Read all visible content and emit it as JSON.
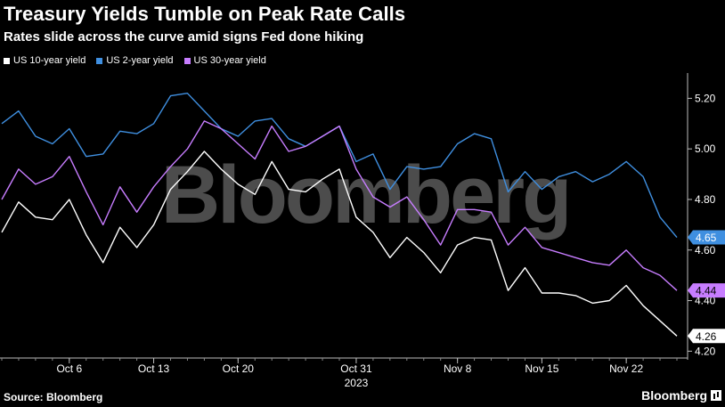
{
  "title": "Treasury Yields Tumble on Peak Rate Calls",
  "subtitle": "Rates slide across the curve amid signs Fed done hiking",
  "source": "Source: Bloomberg",
  "brand": "Bloomberg",
  "watermark": "Bloomberg",
  "chart_data": {
    "type": "line",
    "year_label": "2023",
    "x": [
      "Oct 2",
      "Oct 3",
      "Oct 4",
      "Oct 5",
      "Oct 6",
      "Oct 9",
      "Oct 10",
      "Oct 11",
      "Oct 12",
      "Oct 13",
      "Oct 16",
      "Oct 17",
      "Oct 18",
      "Oct 19",
      "Oct 20",
      "Oct 23",
      "Oct 24",
      "Oct 25",
      "Oct 26",
      "Oct 27",
      "Oct 30",
      "Oct 31",
      "Nov 1",
      "Nov 2",
      "Nov 3",
      "Nov 6",
      "Nov 7",
      "Nov 8",
      "Nov 9",
      "Nov 10",
      "Nov 13",
      "Nov 14",
      "Nov 15",
      "Nov 16",
      "Nov 17",
      "Nov 20",
      "Nov 21",
      "Nov 22",
      "Nov 24",
      "Nov 27",
      "Nov 28"
    ],
    "x_ticks": [
      "Oct 6",
      "Oct 13",
      "Oct 20",
      "Oct 31",
      "Nov 8",
      "Nov 15",
      "Nov 22"
    ],
    "ylim": [
      4.18,
      5.3
    ],
    "y_ticks": [
      "4.20",
      "4.40",
      "4.60",
      "4.80",
      "5.00",
      "5.20"
    ],
    "legend_position": "top-left",
    "grid": false,
    "series": [
      {
        "name": "US 10-year yield",
        "color": "#ffffff",
        "end_label": "4.26",
        "values": [
          4.67,
          4.79,
          4.73,
          4.72,
          4.8,
          4.66,
          4.55,
          4.69,
          4.61,
          4.7,
          4.84,
          4.91,
          4.99,
          4.92,
          4.86,
          4.82,
          4.95,
          4.84,
          4.83,
          4.88,
          4.92,
          4.73,
          4.67,
          4.57,
          4.65,
          4.59,
          4.51,
          4.62,
          4.65,
          4.64,
          4.44,
          4.53,
          4.43,
          4.43,
          4.42,
          4.39,
          4.4,
          4.46,
          4.38,
          4.32,
          4.26
        ]
      },
      {
        "name": "US 2-year yield",
        "color": "#3f8fe0",
        "end_label": "4.65",
        "values": [
          5.1,
          5.15,
          5.05,
          5.02,
          5.08,
          4.97,
          4.98,
          5.07,
          5.06,
          5.1,
          5.21,
          5.22,
          5.15,
          5.08,
          5.05,
          5.11,
          5.12,
          5.04,
          5.01,
          5.05,
          5.09,
          4.95,
          4.98,
          4.84,
          4.93,
          4.92,
          4.93,
          5.02,
          5.06,
          5.04,
          4.83,
          4.91,
          4.84,
          4.89,
          4.91,
          4.87,
          4.9,
          4.95,
          4.89,
          4.73,
          4.65
        ]
      },
      {
        "name": "US 30-year yield",
        "color": "#c77dff",
        "end_label": "4.44",
        "values": [
          4.8,
          4.92,
          4.86,
          4.89,
          4.97,
          4.83,
          4.7,
          4.85,
          4.75,
          4.85,
          4.93,
          5.0,
          5.11,
          5.08,
          5.02,
          4.96,
          5.09,
          4.99,
          5.01,
          5.05,
          5.09,
          4.92,
          4.81,
          4.77,
          4.81,
          4.72,
          4.62,
          4.76,
          4.76,
          4.75,
          4.62,
          4.69,
          4.61,
          4.59,
          4.57,
          4.55,
          4.54,
          4.6,
          4.53,
          4.5,
          4.44
        ]
      }
    ]
  }
}
